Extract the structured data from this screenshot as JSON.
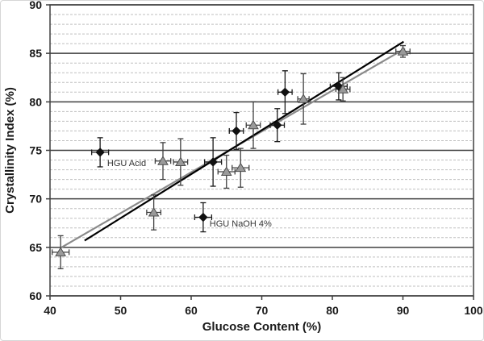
{
  "figure": {
    "background": "#ffffff",
    "frame_color": "#d6d6d6"
  },
  "chart_data": {
    "type": "scatter",
    "title": "",
    "xlabel": "Glucose Content (%)",
    "ylabel": "Crystallinity Index (%)",
    "xlim": [
      40,
      100
    ],
    "ylim": [
      60,
      90
    ],
    "x_ticks": [
      40,
      50,
      60,
      70,
      80,
      90,
      100
    ],
    "y_ticks": [
      60,
      65,
      70,
      75,
      80,
      85,
      90
    ],
    "y_minor_step": 1,
    "grid": {
      "major_horizontal": true,
      "minor_horizontal": true,
      "vertical": false,
      "major_color": "#3f3f3f",
      "minor_color": "#bfbfbf"
    },
    "legend": "none",
    "series": [
      {
        "name": "black-diamond-series",
        "marker": "diamond",
        "fill": "#111111",
        "stroke": "#111111",
        "errorbar_color": "#1a1a1a",
        "points": [
          {
            "x": 47.1,
            "y": 74.8,
            "xerr": 1.2,
            "yerr": 1.5
          },
          {
            "x": 61.7,
            "y": 68.1,
            "xerr": 1.2,
            "yerr": 1.5
          },
          {
            "x": 63.1,
            "y": 73.8,
            "xerr": 1.2,
            "yerr": 2.5
          },
          {
            "x": 66.4,
            "y": 77.0,
            "xerr": 1.0,
            "yerr": 1.9
          },
          {
            "x": 72.2,
            "y": 77.6,
            "xerr": 1.0,
            "yerr": 1.7
          },
          {
            "x": 73.3,
            "y": 81.0,
            "xerr": 1.0,
            "yerr": 2.2
          },
          {
            "x": 80.9,
            "y": 81.6,
            "xerr": 1.2,
            "yerr": 1.4
          }
        ]
      },
      {
        "name": "gray-triangle-series",
        "marker": "triangle",
        "fill": "#9a9a9a",
        "stroke": "#4d4d4d",
        "errorbar_color": "#3f3f3f",
        "points": [
          {
            "x": 41.5,
            "y": 64.5,
            "xerr": 1.2,
            "yerr": 1.7
          },
          {
            "x": 54.7,
            "y": 68.6,
            "xerr": 1.0,
            "yerr": 1.8
          },
          {
            "x": 56.0,
            "y": 73.9,
            "xerr": 1.1,
            "yerr": 1.9
          },
          {
            "x": 58.5,
            "y": 73.8,
            "xerr": 1.0,
            "yerr": 2.4
          },
          {
            "x": 65.0,
            "y": 72.8,
            "xerr": 1.2,
            "yerr": 1.7
          },
          {
            "x": 67.0,
            "y": 73.2,
            "xerr": 1.2,
            "yerr": 2.0
          },
          {
            "x": 68.8,
            "y": 77.6,
            "xerr": 1.0,
            "yerr": 2.4
          },
          {
            "x": 75.9,
            "y": 80.3,
            "xerr": 0.8,
            "yerr": 2.6
          },
          {
            "x": 81.5,
            "y": 81.3,
            "xerr": 1.0,
            "yerr": 1.2
          },
          {
            "x": 90.0,
            "y": 85.2,
            "xerr": 1.0,
            "yerr": 0.6
          }
        ]
      }
    ],
    "trend_lines": [
      {
        "name": "gray-trend-line",
        "color": "#8a8a8a",
        "x1": 41.4,
        "y1": 64.9,
        "x2": 90.3,
        "y2": 85.5,
        "width": 2.2
      },
      {
        "name": "black-trend-line",
        "color": "#000000",
        "x1": 44.9,
        "y1": 65.7,
        "x2": 90.1,
        "y2": 86.2,
        "width": 2.2
      }
    ],
    "annotations": [
      {
        "text": "HGU Acid",
        "x": 48.1,
        "y": 73.7
      },
      {
        "text": "HGU NaOH 4%",
        "x": 62.6,
        "y": 67.5
      }
    ]
  }
}
